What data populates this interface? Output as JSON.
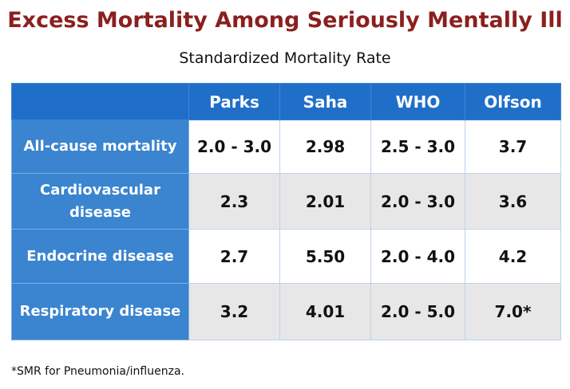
{
  "title": "Excess Mortality Among Seriously Mentally Ill",
  "subtitle": "Standardized Mortality Rate",
  "table": {
    "columns": [
      "",
      "Parks",
      "Saha",
      "WHO",
      "Olfson"
    ],
    "rows": [
      {
        "label": "All-cause mortality",
        "values": [
          "2.0 - 3.0",
          "2.98",
          "2.5 - 3.0",
          "3.7"
        ]
      },
      {
        "label": "Cardiovascular disease",
        "values": [
          "2.3",
          "2.01",
          "2.0 - 3.0",
          "3.6"
        ]
      },
      {
        "label": "Endocrine disease",
        "values": [
          "2.7",
          "5.50",
          "2.0 - 4.0",
          "4.2"
        ]
      },
      {
        "label": "Respiratory disease",
        "values": [
          "3.2",
          "4.01",
          "2.0 - 5.0",
          "7.0*"
        ]
      }
    ]
  },
  "footnote": "*SMR for Pneumonia/influenza.",
  "colors": {
    "title": "#8b1f1f",
    "header_bg": "#1f6fc9",
    "row_label_bg": "#3a84d0",
    "alt_row_bg": "#e7e7e7"
  }
}
